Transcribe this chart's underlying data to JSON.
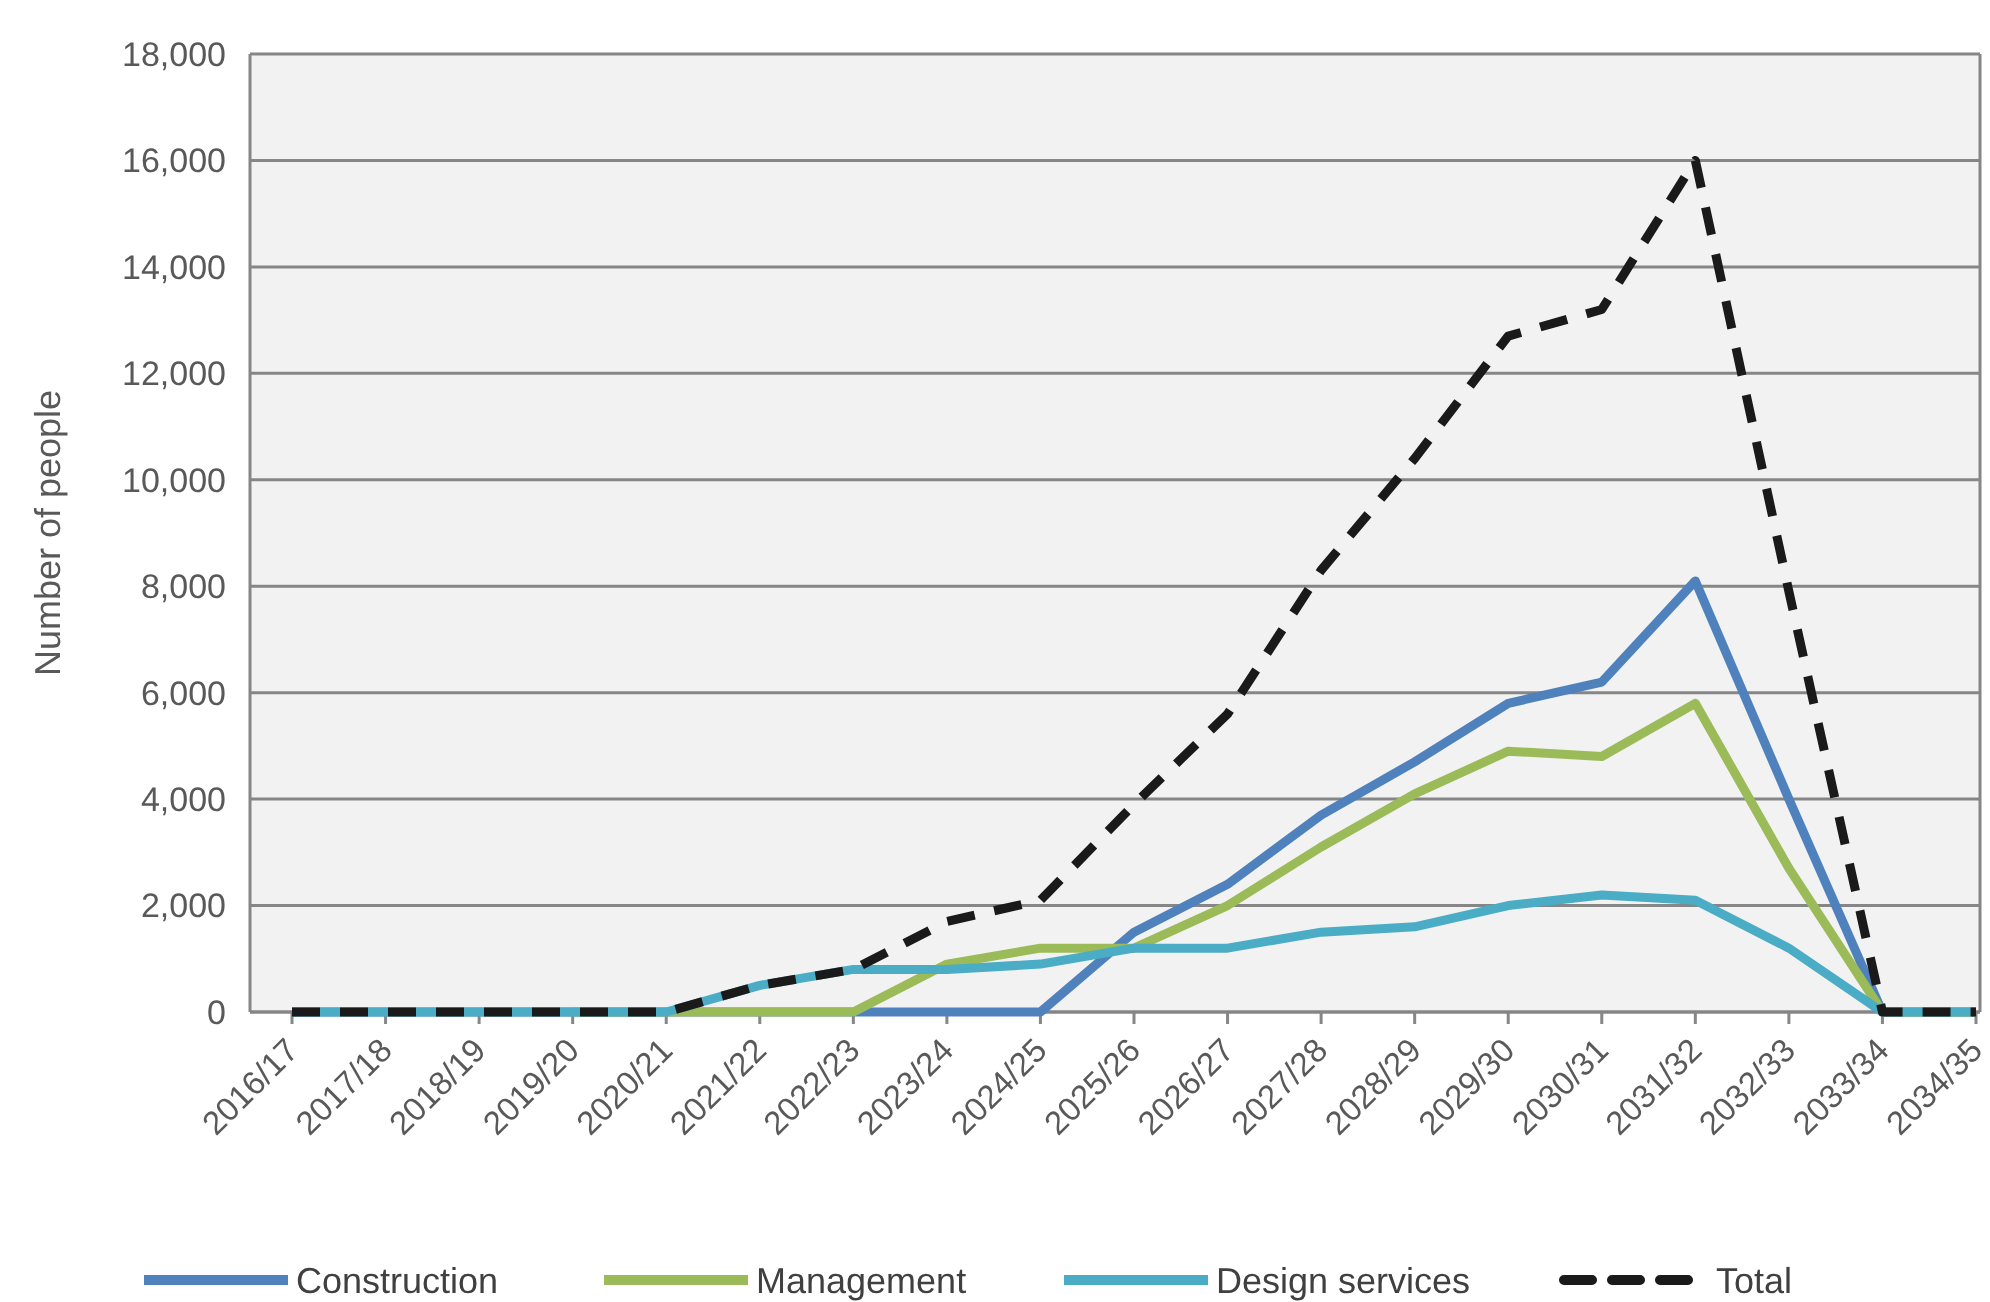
{
  "chart_data": {
    "type": "line",
    "ylabel": "Number of people",
    "categories": [
      "2016/17",
      "2017/18",
      "2018/19",
      "2019/20",
      "2020/21",
      "2021/22",
      "2022/23",
      "2023/24",
      "2024/25",
      "2025/26",
      "2026/27",
      "2027/28",
      "2028/29",
      "2029/30",
      "2030/31",
      "2031/32",
      "2032/33",
      "2033/34",
      "2034/35"
    ],
    "series": [
      {
        "name": "Construction",
        "color": "#4f81bd",
        "values": [
          0,
          0,
          0,
          0,
          0,
          0,
          0,
          0,
          0,
          1500,
          2400,
          3700,
          4700,
          5800,
          6200,
          8100,
          4000,
          0,
          0
        ]
      },
      {
        "name": "Management",
        "color": "#9bbb59",
        "values": [
          null,
          null,
          null,
          0,
          0,
          0,
          0,
          900,
          1200,
          1200,
          2000,
          3100,
          4100,
          4900,
          4800,
          5800,
          2700,
          0,
          0
        ]
      },
      {
        "name": "Design services",
        "color": "#4bacc6",
        "values": [
          0,
          0,
          0,
          0,
          0,
          500,
          800,
          800,
          900,
          1200,
          1200,
          1500,
          1600,
          2000,
          2200,
          2100,
          1200,
          0,
          0
        ]
      },
      {
        "name": "Total",
        "color": "#1a1a1a",
        "line_style": "dashed",
        "values": [
          0,
          0,
          0,
          0,
          0,
          500,
          800,
          1700,
          2100,
          3900,
          5600,
          8300,
          10400,
          12700,
          13200,
          16000,
          7900,
          0,
          0
        ]
      }
    ],
    "ylim": [
      0,
      18000
    ],
    "yticks": [
      {
        "value": 0,
        "label": "0"
      },
      {
        "value": 2000,
        "label": "2,000"
      },
      {
        "value": 4000,
        "label": "4,000"
      },
      {
        "value": 6000,
        "label": "6,000"
      },
      {
        "value": 8000,
        "label": "8,000"
      },
      {
        "value": 10000,
        "label": "10,000"
      },
      {
        "value": 12000,
        "label": "12,000"
      },
      {
        "value": 14000,
        "label": "14,000"
      },
      {
        "value": 16000,
        "label": "16,000"
      },
      {
        "value": 18000,
        "label": "18,000"
      }
    ],
    "grid": "y",
    "legend": "bottom"
  }
}
